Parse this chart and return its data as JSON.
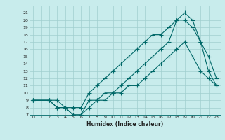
{
  "xlabel": "Humidex (Indice chaleur)",
  "bg_color": "#c8ecec",
  "grid_color": "#a0cfcf",
  "line_color": "#006868",
  "xlim": [
    -0.5,
    23.5
  ],
  "ylim": [
    7,
    22
  ],
  "line1": {
    "x": [
      0,
      2,
      3,
      4,
      5,
      6,
      7,
      8,
      9,
      10,
      11,
      12,
      13,
      14,
      15,
      16,
      17,
      18,
      19,
      20,
      21,
      22,
      23
    ],
    "y": [
      9,
      9,
      9,
      8,
      8,
      8,
      10,
      11,
      12,
      13,
      14,
      15,
      16,
      17,
      18,
      18,
      19,
      20,
      20,
      19,
      17,
      15,
      12
    ]
  },
  "line2": {
    "x": [
      0,
      2,
      3,
      4,
      5,
      6,
      7,
      8,
      9,
      10,
      11,
      12,
      13,
      14,
      15,
      16,
      17,
      18,
      19,
      20,
      21,
      22,
      23
    ],
    "y": [
      9,
      9,
      8,
      8,
      7,
      7,
      9,
      9,
      10,
      10,
      11,
      12,
      13,
      14,
      15,
      16,
      17,
      20,
      21,
      20,
      17,
      13,
      11
    ]
  },
  "line3": {
    "x": [
      0,
      2,
      3,
      4,
      5,
      6,
      7,
      8,
      9,
      10,
      11,
      12,
      13,
      14,
      15,
      16,
      17,
      18,
      19,
      20,
      21,
      22,
      23
    ],
    "y": [
      9,
      9,
      8,
      8,
      7,
      7,
      8,
      9,
      9,
      10,
      10,
      11,
      11,
      12,
      13,
      14,
      15,
      16,
      17,
      15,
      13,
      12,
      11
    ]
  },
  "xticks": [
    0,
    1,
    2,
    3,
    4,
    5,
    6,
    7,
    8,
    9,
    10,
    11,
    12,
    13,
    14,
    15,
    16,
    17,
    18,
    19,
    20,
    21,
    22,
    23
  ],
  "yticks": [
    7,
    8,
    9,
    10,
    11,
    12,
    13,
    14,
    15,
    16,
    17,
    18,
    19,
    20,
    21
  ],
  "figsize": [
    3.2,
    2.0
  ],
  "dpi": 100
}
